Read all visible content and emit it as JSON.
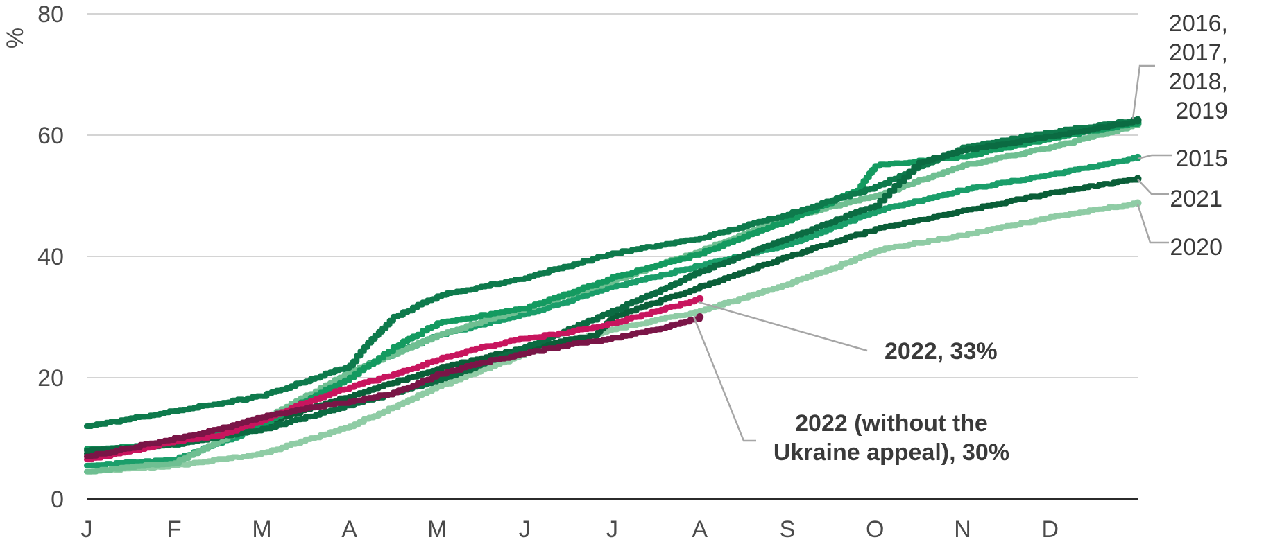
{
  "chart_data": {
    "type": "line",
    "title": "",
    "xlabel": "",
    "ylabel": "%",
    "ylim": [
      0,
      80
    ],
    "xlim": [
      0,
      12
    ],
    "yticks": [
      0,
      20,
      40,
      60,
      80
    ],
    "ytick_labels": [
      "0",
      "20",
      "40",
      "60",
      "80"
    ],
    "categories": [
      "J",
      "F",
      "M",
      "A",
      "M",
      "J",
      "J",
      "A",
      "S",
      "O",
      "N",
      "D"
    ],
    "grid": "horizontal",
    "series": [
      {
        "color": "#8fcca5",
        "x": [
          0,
          1,
          2,
          3,
          4,
          5,
          6,
          7,
          8,
          8.5,
          9,
          10,
          11,
          12
        ],
        "y": [
          4.5,
          5.5,
          7.5,
          12,
          18.5,
          24,
          28,
          31,
          35.5,
          38,
          41,
          43.5,
          46.5,
          48.8
        ]
      },
      {
        "color": "#1a9e6a",
        "x": [
          0,
          1,
          2,
          3,
          4,
          5,
          6,
          7,
          8,
          9,
          10,
          11,
          12
        ],
        "y": [
          5.5,
          6.5,
          12,
          21,
          27,
          30.5,
          35,
          38.5,
          42,
          47.5,
          51,
          53.5,
          56.3
        ]
      },
      {
        "color": "#0a5e38",
        "x": [
          0,
          1,
          2,
          3,
          4,
          5,
          5.8,
          6,
          7,
          8,
          9,
          10,
          11,
          12
        ],
        "y": [
          7.5,
          9.5,
          12.5,
          17,
          21.5,
          25,
          27,
          30,
          35,
          40,
          44.5,
          47.5,
          50.5,
          52.8
        ]
      },
      {
        "color": "#6fbf92",
        "x": [
          0,
          1,
          2,
          3,
          4,
          5,
          6,
          7,
          8,
          9,
          10,
          11,
          12
        ],
        "y": [
          4.5,
          6,
          13,
          21,
          27,
          31.5,
          36,
          41,
          46.5,
          50,
          55,
          58,
          61.8
        ]
      },
      {
        "color": "#149a60",
        "x": [
          0,
          1,
          2,
          3,
          3.5,
          4,
          5,
          6,
          7,
          8,
          8.8,
          9,
          10,
          11,
          12
        ],
        "y": [
          8.3,
          9,
          12.5,
          20,
          25,
          29,
          31.5,
          36.5,
          40.5,
          46,
          51,
          55,
          56.5,
          59.5,
          62
        ]
      },
      {
        "color": "#0e7a4c",
        "x": [
          0,
          1,
          2,
          3,
          3.25,
          3.5,
          4,
          5,
          6,
          7,
          8,
          9,
          10,
          11,
          12
        ],
        "y": [
          12,
          14.5,
          17,
          22,
          26.5,
          30,
          33.5,
          36.5,
          40.5,
          43,
          47,
          51.5,
          58,
          60.5,
          62.5
        ]
      },
      {
        "color": "#0b6b42",
        "x": [
          0,
          1,
          2,
          3,
          4,
          5,
          6,
          7,
          8,
          9,
          9.5,
          10,
          11,
          12
        ],
        "y": [
          8,
          9,
          11.5,
          15.5,
          19.5,
          25,
          31,
          37.5,
          43,
          48.5,
          55.5,
          57.5,
          59.8,
          62.4
        ]
      },
      {
        "name": "2022, 33%",
        "color": "#c8155e",
        "x": [
          0,
          0.5,
          1,
          1.5,
          2,
          2.5,
          3,
          3.5,
          4,
          4.5,
          5,
          5.5,
          6,
          6.5,
          7
        ],
        "y": [
          6.5,
          8,
          9.5,
          10.5,
          13,
          16,
          18.5,
          20.5,
          23,
          25,
          26.5,
          27.5,
          29,
          31,
          33
        ]
      },
      {
        "name": "2022 (without the Ukraine appeal), 30%",
        "color": "#7a1547",
        "x": [
          0,
          0.5,
          1,
          1.5,
          2,
          2.5,
          3,
          3.5,
          4,
          4.5,
          5,
          5.5,
          6,
          6.5,
          7
        ],
        "y": [
          7,
          8.5,
          10,
          11.5,
          13.5,
          15,
          16,
          17.5,
          20.5,
          22.5,
          24,
          25.5,
          26.5,
          28,
          30
        ]
      }
    ],
    "annotations": [
      {
        "text": "2016, 2017, 2018, 2019",
        "lines": [
          "2016,",
          "2017,",
          "2018,",
          "2019"
        ],
        "bold": false,
        "target": [
          12,
          62.2
        ]
      },
      {
        "text": "2015",
        "lines": [
          "2015"
        ],
        "bold": false,
        "target": [
          12,
          56.3
        ]
      },
      {
        "text": "2021",
        "lines": [
          "2021"
        ],
        "bold": false,
        "target": [
          12,
          52.8
        ]
      },
      {
        "text": "2020",
        "lines": [
          "2020"
        ],
        "bold": false,
        "target": [
          12,
          48.8
        ]
      },
      {
        "text": "2022, 33%",
        "lines": [
          "2022, 33%"
        ],
        "bold": true,
        "target": [
          7,
          33
        ]
      },
      {
        "text": "2022 (without the Ukraine appeal), 30%",
        "lines": [
          "2022 (without the",
          "Ukraine appeal), 30%"
        ],
        "bold": true,
        "target": [
          7,
          30
        ]
      }
    ]
  }
}
